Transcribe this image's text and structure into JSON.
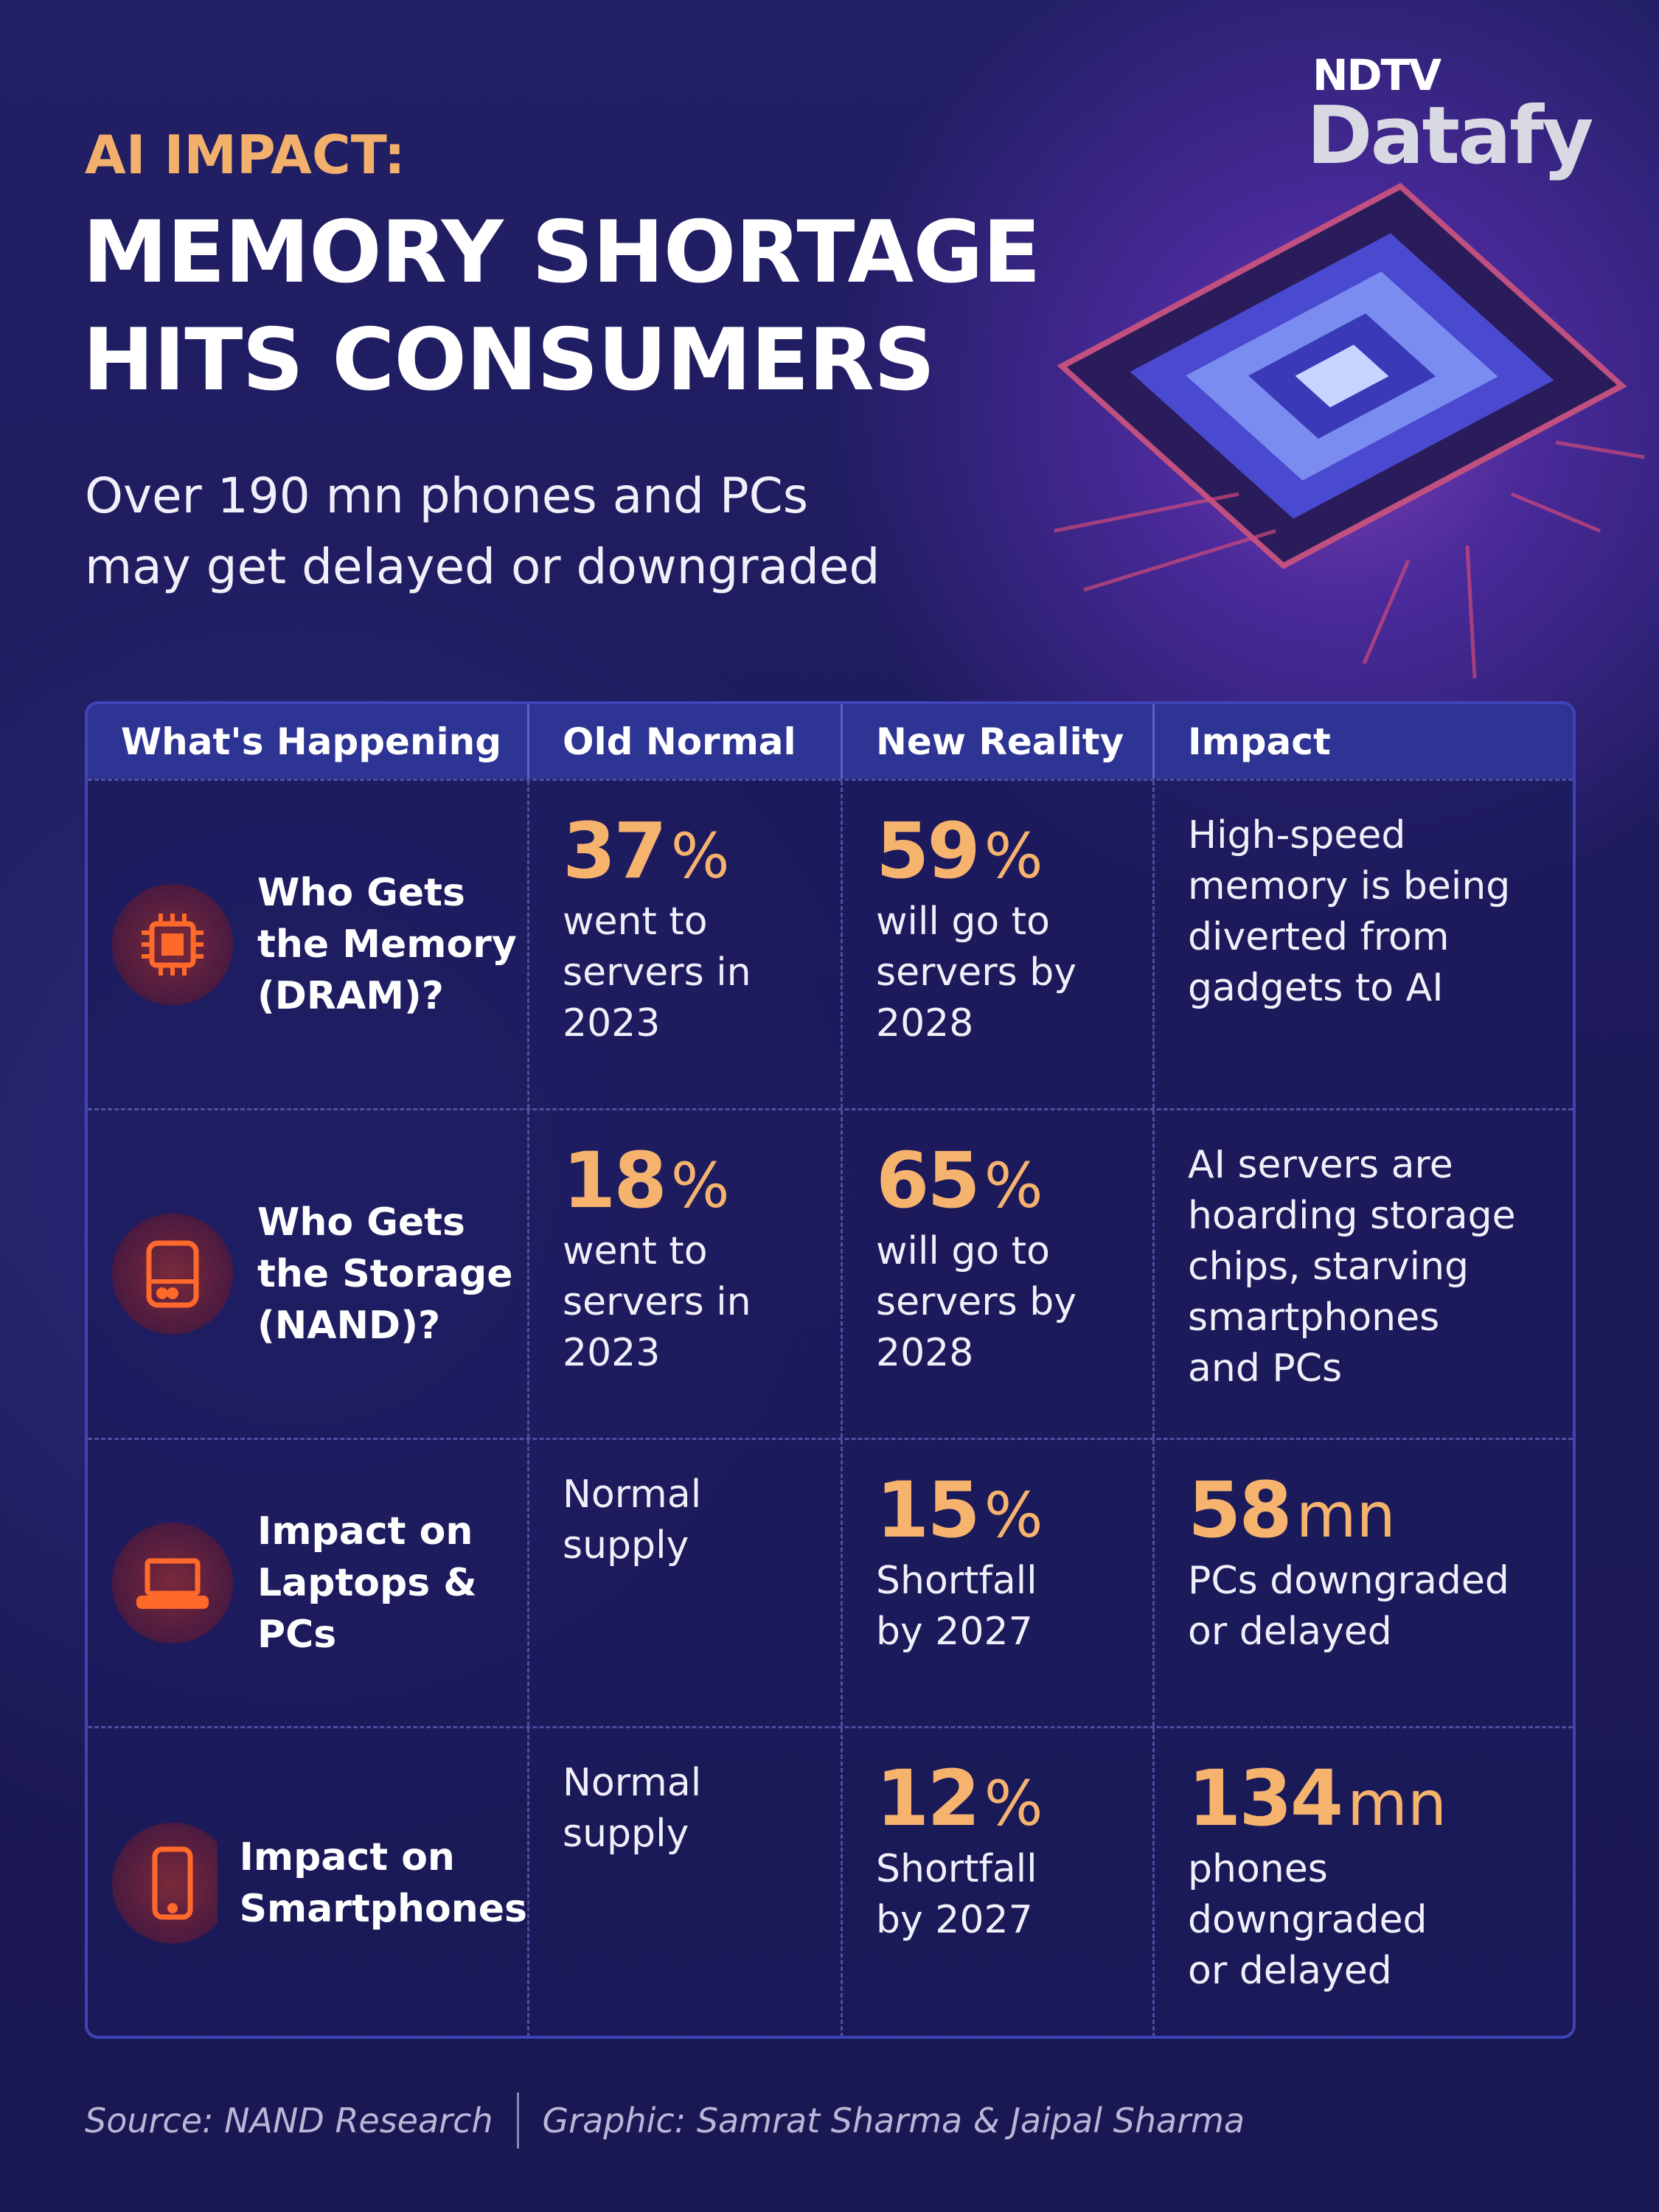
{
  "header": {
    "kicker": "AI IMPACT:",
    "title_lines": [
      "MEMORY SHORTAGE",
      "HITS CONSUMERS"
    ],
    "subtitle_lines": [
      "Over 190 mn phones and PCs",
      "may get delayed or downgraded"
    ]
  },
  "logo": {
    "brand": "NDTV",
    "product": "Datafy"
  },
  "table": {
    "columns": [
      "What's Happening",
      "Old Normal",
      "New Reality",
      "Impact"
    ],
    "rows": [
      {
        "label_lines": [
          "Who Gets",
          "the Memory",
          "(DRAM)?"
        ],
        "old": {
          "value": "37",
          "unit": "%",
          "text_lines": [
            "went to",
            "servers in",
            "2023"
          ]
        },
        "new": {
          "value": "59",
          "unit": "%",
          "text_lines": [
            "will go to",
            "servers by",
            "2028"
          ]
        },
        "impact": {
          "text_lines": [
            "High-speed",
            "memory is being",
            "diverted from",
            "gadgets to AI"
          ]
        }
      },
      {
        "label_lines": [
          "Who Gets",
          "the Storage",
          "(NAND)?"
        ],
        "old": {
          "value": "18",
          "unit": "%",
          "text_lines": [
            "went to",
            "servers in",
            "2023"
          ]
        },
        "new": {
          "value": "65",
          "unit": "%",
          "text_lines": [
            "will go to",
            "servers by",
            "2028"
          ]
        },
        "impact": {
          "text_lines": [
            "AI servers are",
            "hoarding storage",
            "chips, starving",
            "smartphones",
            "and PCs"
          ]
        }
      },
      {
        "label_lines": [
          "Impact on",
          "Laptops &",
          "PCs"
        ],
        "old": {
          "text_lines": [
            "Normal",
            "supply"
          ]
        },
        "new": {
          "value": "15",
          "unit": "%",
          "text_lines": [
            "Shortfall",
            "by 2027"
          ]
        },
        "impact": {
          "value": "58",
          "unit": "mn",
          "text_lines": [
            "PCs downgraded",
            "or delayed"
          ]
        }
      },
      {
        "label_lines": [
          "Impact on",
          "Smartphones"
        ],
        "old": {
          "text_lines": [
            "Normal",
            "supply"
          ]
        },
        "new": {
          "value": "12",
          "unit": "%",
          "text_lines": [
            "Shortfall",
            "by 2027"
          ]
        },
        "impact": {
          "value": "134",
          "unit": "mn",
          "text_lines": [
            "phones",
            "downgraded",
            "or delayed"
          ]
        }
      }
    ]
  },
  "footer": {
    "source": "Source: NAND Research",
    "credit": "Graphic: Samrat Sharma & Jaipal Sharma"
  }
}
